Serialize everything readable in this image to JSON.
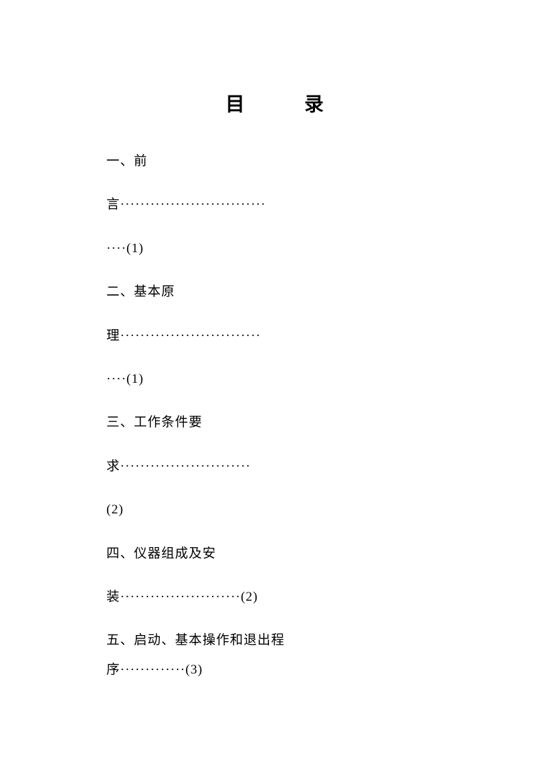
{
  "title": "目 录",
  "lines": [
    "一、前",
    "言·····························",
    "····(1)",
    "二、基本原",
    "理····························",
    "····(1)",
    "三、工作条件要",
    "求··························",
    "(2)",
    "四、仪器组成及安",
    "装························(2)",
    "五、启动、基本操作和退出程",
    "序·············(3)"
  ]
}
